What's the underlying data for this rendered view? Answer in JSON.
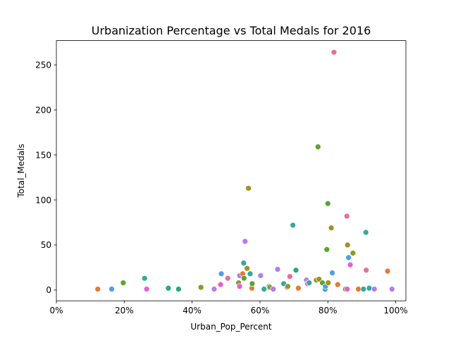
{
  "chart_data": {
    "type": "scatter",
    "title": "Urbanization Percentage vs Total Medals for 2016",
    "xlabel": "Urban_Pop_Percent",
    "ylabel": "Total_Medals",
    "xlim": [
      0,
      1.03
    ],
    "ylim": [
      -12,
      277
    ],
    "xticks": [
      0,
      0.2,
      0.4,
      0.6,
      0.8,
      1.0
    ],
    "xtick_labels": [
      "0%",
      "20%",
      "40%",
      "60%",
      "80%",
      "100%"
    ],
    "yticks": [
      0,
      50,
      100,
      150,
      200,
      250
    ],
    "ytick_labels": [
      "0",
      "50",
      "100",
      "150",
      "200",
      "250"
    ],
    "grid": false,
    "legend": "none",
    "points": [
      {
        "x": 0.122,
        "y": 1,
        "color": "#e07b39"
      },
      {
        "x": 0.163,
        "y": 1,
        "color": "#4c9fe8"
      },
      {
        "x": 0.197,
        "y": 8,
        "color": "#5ba430"
      },
      {
        "x": 0.26,
        "y": 13,
        "color": "#36a89c"
      },
      {
        "x": 0.266,
        "y": 1,
        "color": "#e55fd4"
      },
      {
        "x": 0.33,
        "y": 2,
        "color": "#2aa876"
      },
      {
        "x": 0.36,
        "y": 1,
        "color": "#2aa876"
      },
      {
        "x": 0.426,
        "y": 3,
        "color": "#8a9a2a"
      },
      {
        "x": 0.465,
        "y": 1,
        "color": "#b77bea"
      },
      {
        "x": 0.484,
        "y": 6,
        "color": "#e55fd4"
      },
      {
        "x": 0.486,
        "y": 18,
        "color": "#4c9fe8"
      },
      {
        "x": 0.505,
        "y": 13,
        "color": "#e86e9a"
      },
      {
        "x": 0.537,
        "y": 8,
        "color": "#8a9a2a"
      },
      {
        "x": 0.54,
        "y": 4,
        "color": "#e55fd4"
      },
      {
        "x": 0.54,
        "y": 16,
        "color": "#b77bea"
      },
      {
        "x": 0.549,
        "y": 18,
        "color": "#e07b39"
      },
      {
        "x": 0.552,
        "y": 30,
        "color": "#36a89c"
      },
      {
        "x": 0.553,
        "y": 13,
        "color": "#5ba430"
      },
      {
        "x": 0.556,
        "y": 54,
        "color": "#b77bea"
      },
      {
        "x": 0.562,
        "y": 24,
        "color": "#a3901f"
      },
      {
        "x": 0.566,
        "y": 113,
        "color": "#a3901f"
      },
      {
        "x": 0.571,
        "y": 18,
        "color": "#36a89c"
      },
      {
        "x": 0.576,
        "y": 2,
        "color": "#e07b39"
      },
      {
        "x": 0.577,
        "y": 7,
        "color": "#5ba430"
      },
      {
        "x": 0.602,
        "y": 16,
        "color": "#b77bea"
      },
      {
        "x": 0.612,
        "y": 1,
        "color": "#36a89c"
      },
      {
        "x": 0.627,
        "y": 4,
        "color": "#2aa876"
      },
      {
        "x": 0.629,
        "y": 3,
        "color": "#8a9a2a"
      },
      {
        "x": 0.639,
        "y": 1,
        "color": "#b77bea"
      },
      {
        "x": 0.652,
        "y": 23,
        "color": "#b77bea"
      },
      {
        "x": 0.67,
        "y": 7,
        "color": "#36a89c"
      },
      {
        "x": 0.68,
        "y": 3,
        "color": "#e55fd4"
      },
      {
        "x": 0.682,
        "y": 4,
        "color": "#8a9a2a"
      },
      {
        "x": 0.688,
        "y": 15,
        "color": "#e86e9a"
      },
      {
        "x": 0.697,
        "y": 72,
        "color": "#36a89c"
      },
      {
        "x": 0.706,
        "y": 22,
        "color": "#2aa876"
      },
      {
        "x": 0.713,
        "y": 2,
        "color": "#e07b39"
      },
      {
        "x": 0.737,
        "y": 11,
        "color": "#b77bea"
      },
      {
        "x": 0.74,
        "y": 7,
        "color": "#e55fd4"
      },
      {
        "x": 0.745,
        "y": 8,
        "color": "#36a89c"
      },
      {
        "x": 0.766,
        "y": 11,
        "color": "#a3901f"
      },
      {
        "x": 0.771,
        "y": 159,
        "color": "#5ba430"
      },
      {
        "x": 0.774,
        "y": 12,
        "color": "#a3901f"
      },
      {
        "x": 0.784,
        "y": 8,
        "color": "#5ba430"
      },
      {
        "x": 0.792,
        "y": 1,
        "color": "#36a89c"
      },
      {
        "x": 0.793,
        "y": 4,
        "color": "#4c9fe8"
      },
      {
        "x": 0.797,
        "y": 45,
        "color": "#5ba430"
      },
      {
        "x": 0.8,
        "y": 96,
        "color": "#5ba430"
      },
      {
        "x": 0.801,
        "y": 8,
        "color": "#a3901f"
      },
      {
        "x": 0.81,
        "y": 69,
        "color": "#a3901f"
      },
      {
        "x": 0.813,
        "y": 19,
        "color": "#4c9fe8"
      },
      {
        "x": 0.818,
        "y": 264,
        "color": "#e86e9a"
      },
      {
        "x": 0.829,
        "y": 6,
        "color": "#e07b39"
      },
      {
        "x": 0.852,
        "y": 1,
        "color": "#5ba430"
      },
      {
        "x": 0.856,
        "y": 82,
        "color": "#e86e9a"
      },
      {
        "x": 0.857,
        "y": 1,
        "color": "#e55fd4"
      },
      {
        "x": 0.858,
        "y": 50,
        "color": "#a3901f"
      },
      {
        "x": 0.861,
        "y": 36,
        "color": "#4c9fe8"
      },
      {
        "x": 0.866,
        "y": 28,
        "color": "#e55fd4"
      },
      {
        "x": 0.874,
        "y": 41,
        "color": "#8a9a2a"
      },
      {
        "x": 0.89,
        "y": 1,
        "color": "#e07b39"
      },
      {
        "x": 0.905,
        "y": 1,
        "color": "#36a89c"
      },
      {
        "x": 0.912,
        "y": 64,
        "color": "#36a89c"
      },
      {
        "x": 0.913,
        "y": 22,
        "color": "#e86e9a"
      },
      {
        "x": 0.922,
        "y": 2,
        "color": "#36a89c"
      },
      {
        "x": 0.937,
        "y": 1,
        "color": "#b77bea"
      },
      {
        "x": 0.976,
        "y": 21,
        "color": "#e07b39"
      },
      {
        "x": 0.989,
        "y": 1,
        "color": "#b77bea"
      }
    ]
  }
}
